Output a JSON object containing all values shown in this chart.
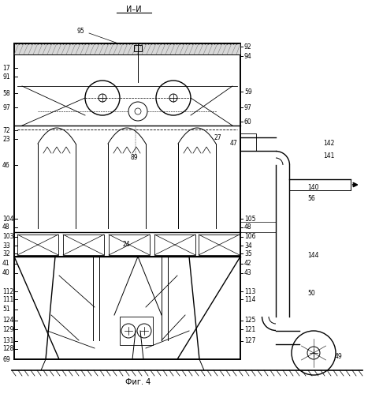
{
  "title": "И–И",
  "fig_label": "Фиг. 4",
  "bg_color": "#ffffff",
  "line_color": "#000000",
  "fig_size": [
    4.67,
    4.99
  ],
  "dpi": 100
}
